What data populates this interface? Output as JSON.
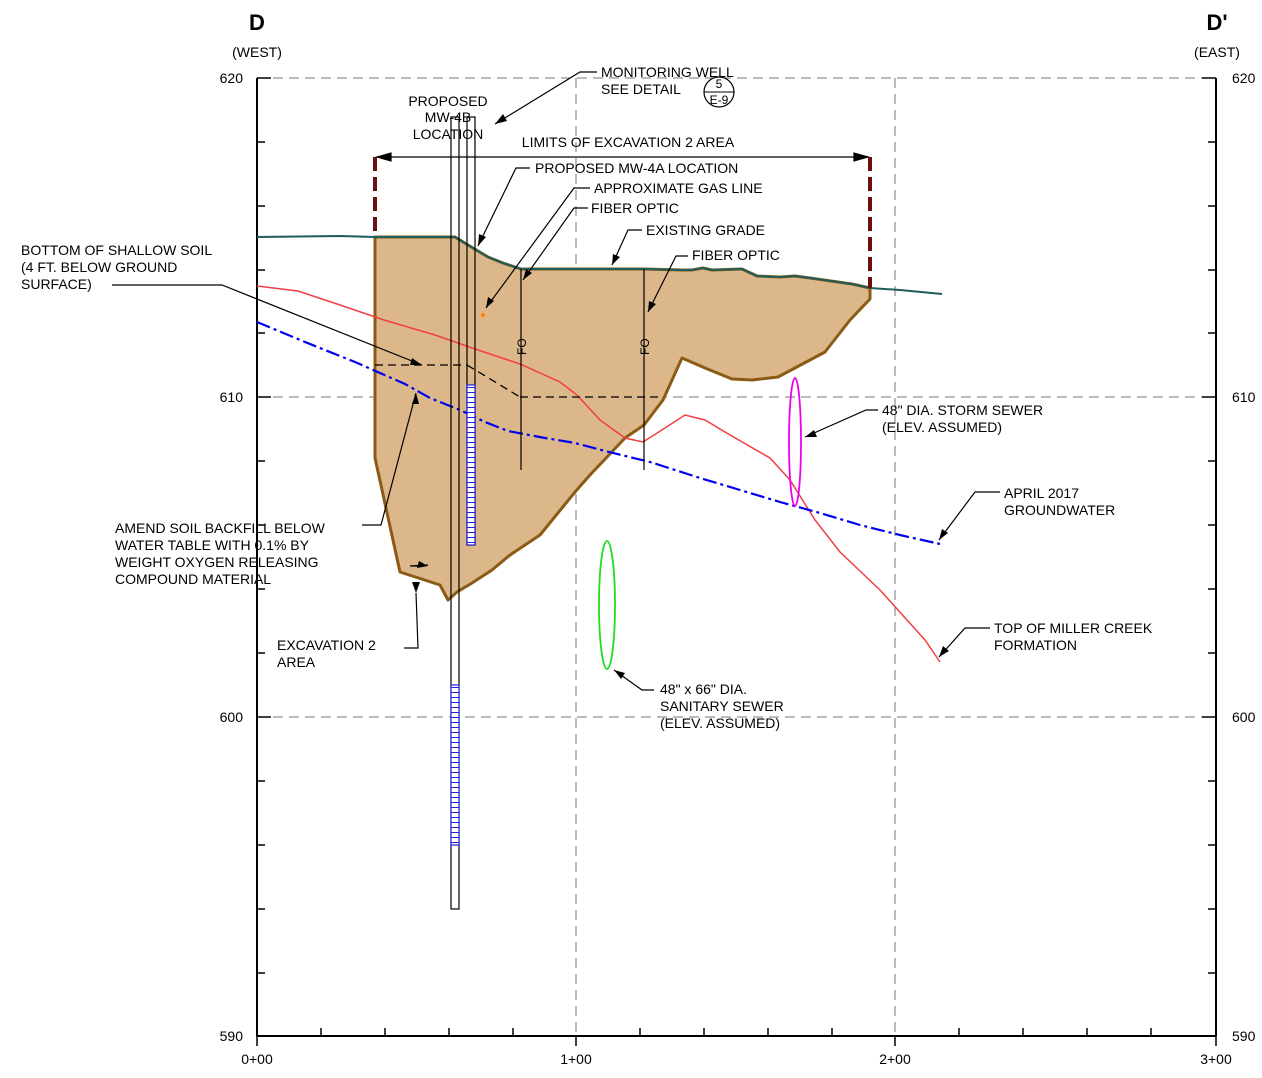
{
  "header": {
    "left_letter": "D",
    "left_dir": "(WEST)",
    "right_letter": "D'",
    "right_dir": "(EAST)"
  },
  "axes": {
    "y_ticks": [
      "620",
      "610",
      "600",
      "590"
    ],
    "x_ticks": [
      "0+00",
      "1+00",
      "2+00",
      "3+00"
    ]
  },
  "labels": {
    "monitoring_well_1": "MONITORING WELL",
    "monitoring_well_2": "SEE DETAIL",
    "detail_number": "5",
    "detail_sheet": "E-9",
    "mw4b_1": "PROPOSED",
    "mw4b_2": "MW-4B",
    "mw4b_3": "LOCATION",
    "limits": "LIMITS OF EXCAVATION 2 AREA",
    "mw4a": "PROPOSED MW-4A LOCATION",
    "gas_line": "APPROXIMATE GAS LINE",
    "fiber_optic_1": "FIBER OPTIC",
    "existing_grade": "EXISTING GRADE",
    "fiber_optic_2": "FIBER OPTIC",
    "shallow_1": "BOTTOM OF SHALLOW SOIL",
    "shallow_2": "(4 FT. BELOW GROUND",
    "shallow_3": "SURFACE)",
    "fo_a": "FO",
    "fo_b": "FO",
    "storm_1": "48\" DIA. STORM  SEWER",
    "storm_2": "(ELEV.  ASSUMED)",
    "gw_1": "APRIL 2017",
    "gw_2": "GROUNDWATER",
    "amend_1": "AMEND SOIL BACKFILL BELOW",
    "amend_2": "WATER TABLE WITH 0.1% BY",
    "amend_3": "WEIGHT OXYGEN RELEASING",
    "amend_4": "COMPOUND MATERIAL",
    "exc_1": "EXCAVATION 2",
    "exc_2": "AREA",
    "miller_1": "TOP OF MILLER CREEK",
    "miller_2": "FORMATION",
    "san_1": "48\" x 66\"  DIA.",
    "san_2": "SANITARY  SEWER",
    "san_3": "(ELEV.  ASSUMED)"
  },
  "colors": {
    "excavation_fill": "#dcb78a",
    "excavation_edge": "#8b5a14",
    "grade": "#1f5e5a",
    "limit_marker": "#6b0f0f",
    "groundwater": "#0000ee",
    "miller_creek": "#f04040",
    "storm_sewer": "#ee00ee",
    "sanitary_sewer": "#22dd22",
    "well_screen": "#2020dd",
    "gas_point": "#ff8800"
  }
}
